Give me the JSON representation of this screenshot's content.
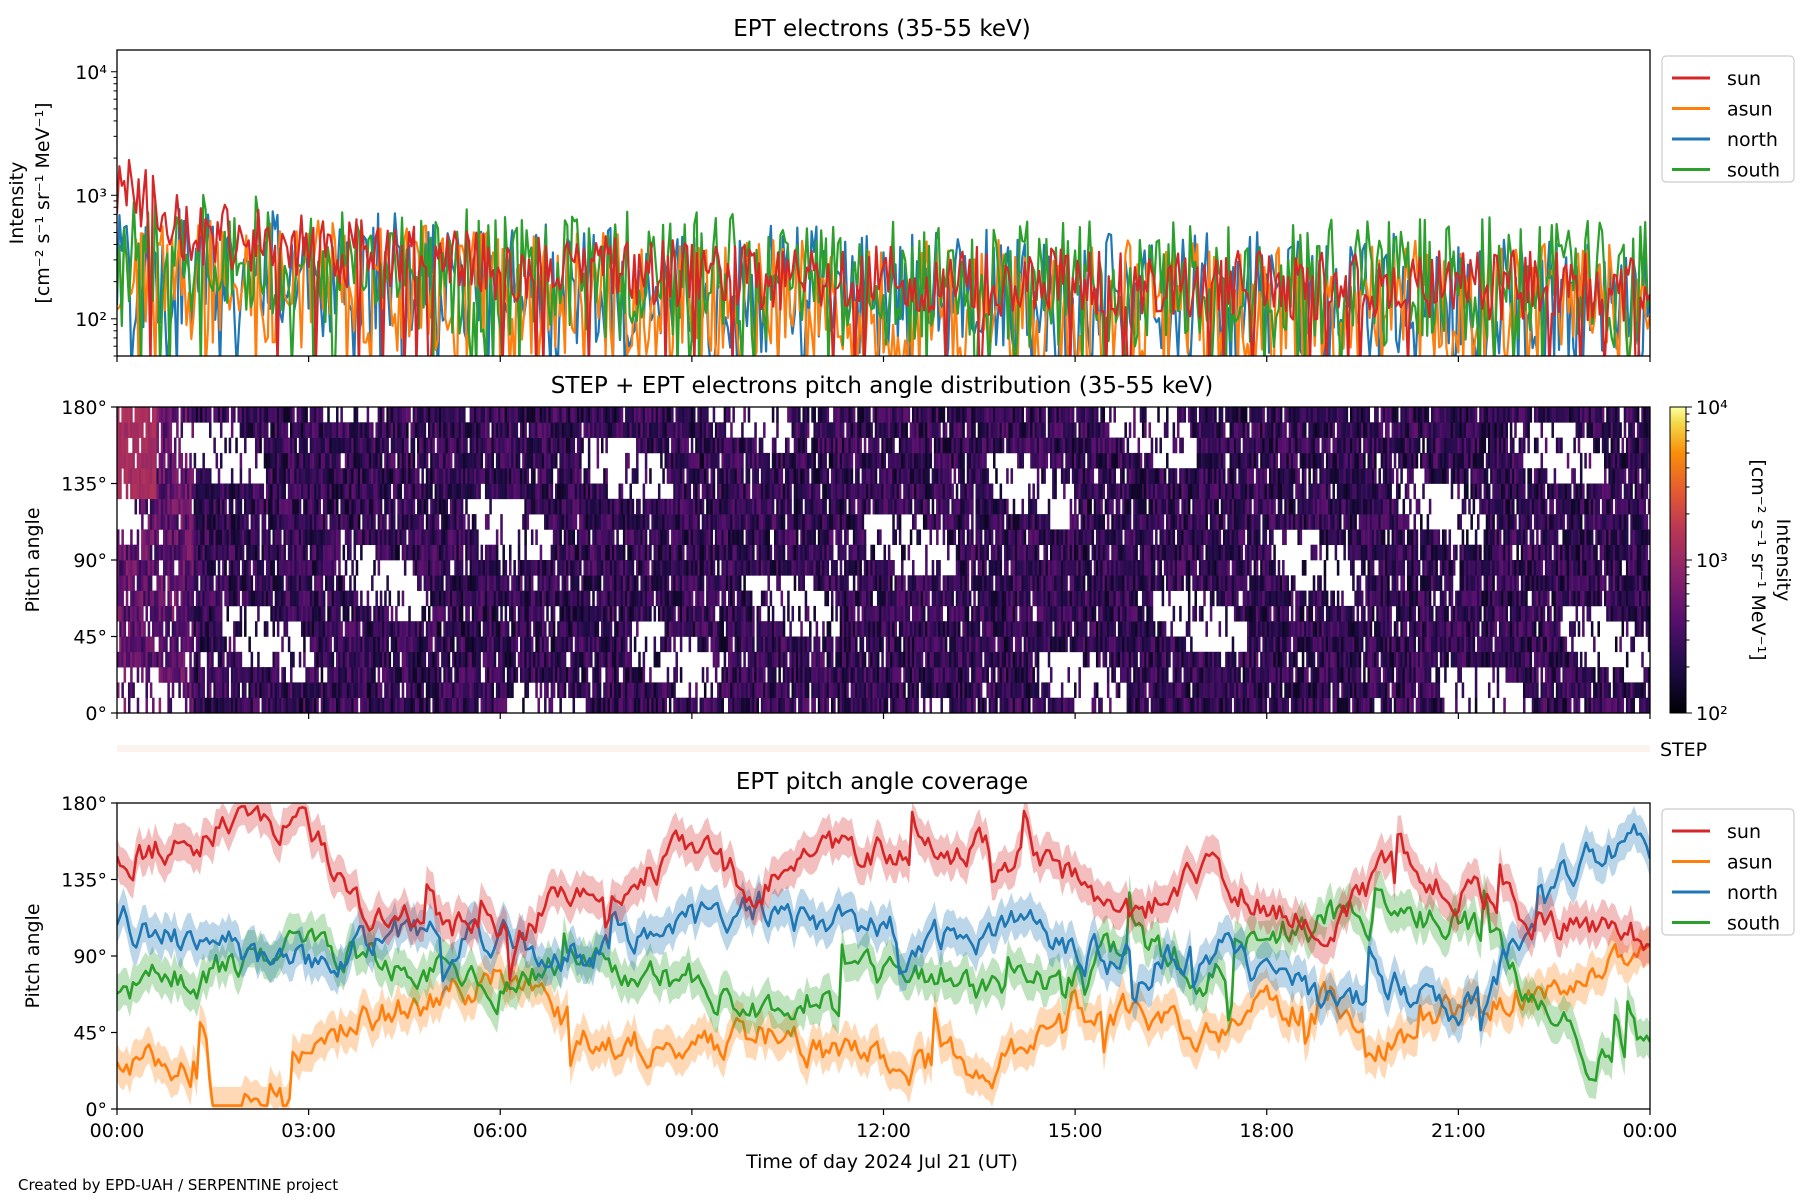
{
  "figure": {
    "credit": "Created by EPD-UAH / SERPENTINE project",
    "xlabel": "Time of day 2024 Jul 21 (UT)",
    "xtick_labels": [
      "00:00",
      "03:00",
      "06:00",
      "09:00",
      "12:00",
      "15:00",
      "18:00",
      "21:00",
      "00:00"
    ]
  },
  "chart_data": [
    {
      "type": "line",
      "title": "EPT electrons (35-55 keV)",
      "ylabel_line1": "Intensity",
      "ylabel_line2": "[cm⁻² s⁻¹ sr⁻¹ MeV⁻¹]",
      "yscale": "log",
      "ylim": [
        50,
        15000
      ],
      "ytick_values": [
        100,
        1000,
        10000
      ],
      "ytick_labels": [
        "10²",
        "10³",
        "10⁴"
      ],
      "xlim_hours": [
        0,
        24
      ],
      "legend_placement": "outside-right-top",
      "series": [
        {
          "name": "sun",
          "color": "#d62728",
          "x_hours": [
            0,
            0.3,
            0.6,
            1,
            2,
            3,
            4,
            6,
            8,
            10,
            12,
            14,
            16,
            18,
            20,
            22,
            24
          ],
          "values": [
            900,
            1100,
            800,
            550,
            450,
            380,
            320,
            270,
            240,
            220,
            210,
            200,
            195,
            190,
            185,
            190,
            180
          ]
        },
        {
          "name": "asun",
          "color": "#ff7f0e",
          "x_hours": [
            0,
            1,
            2,
            4,
            6,
            8,
            10,
            12,
            14,
            16,
            18,
            20,
            22,
            24
          ],
          "values": [
            250,
            230,
            260,
            230,
            200,
            190,
            180,
            175,
            170,
            165,
            160,
            165,
            160,
            150
          ]
        },
        {
          "name": "north",
          "color": "#1f77b4",
          "x_hours": [
            0,
            1,
            2,
            4,
            6,
            8,
            10,
            12,
            14,
            16,
            18,
            20,
            22,
            24
          ],
          "values": [
            280,
            300,
            320,
            280,
            250,
            230,
            220,
            210,
            200,
            200,
            195,
            200,
            190,
            180
          ]
        },
        {
          "name": "south",
          "color": "#2ca02c",
          "x_hours": [
            0,
            1,
            2,
            4,
            6,
            8,
            10,
            12,
            14,
            16,
            18,
            20,
            22,
            24
          ],
          "values": [
            350,
            420,
            380,
            330,
            300,
            290,
            270,
            250,
            250,
            245,
            240,
            250,
            260,
            240
          ]
        }
      ]
    },
    {
      "type": "heatmap",
      "title": "STEP + EPT electrons pitch angle distribution (35-55 keV)",
      "ylabel": "Pitch angle",
      "ylim": [
        0,
        180
      ],
      "ytick_labels": [
        "0°",
        "45°",
        "90°",
        "135°",
        "180°"
      ],
      "xlim_hours": [
        0,
        24
      ],
      "colorbar": {
        "scale": "log",
        "range": [
          100,
          10000
        ],
        "colormap": "inferno",
        "tick_labels": [
          "10²",
          "10³",
          "10⁴"
        ],
        "label_line1": "Intensity",
        "label_line2": "[cm⁻² s⁻¹ sr⁻¹ MeV⁻¹]"
      },
      "typical_intensity": 250,
      "early_peak_intensity": 1200
    },
    {
      "type": "heatmap",
      "title": "",
      "label": "STEP",
      "color": "#fdf3ee"
    },
    {
      "type": "line",
      "title": "EPT pitch angle coverage",
      "ylabel": "Pitch angle",
      "ylim": [
        0,
        180
      ],
      "ytick_labels": [
        "0°",
        "45°",
        "90°",
        "135°",
        "180°"
      ],
      "xlim_hours": [
        0,
        24
      ],
      "legend_placement": "outside-right-top",
      "series": [
        {
          "name": "sun",
          "color": "#d62728",
          "x_hours": [
            0,
            1,
            2,
            3,
            4,
            5,
            6,
            7,
            8,
            9,
            10,
            11,
            12,
            13,
            14,
            15,
            16,
            17,
            18,
            19,
            20,
            21,
            22,
            23,
            24
          ],
          "values": [
            150,
            160,
            170,
            165,
            120,
            110,
            100,
            125,
            140,
            150,
            130,
            145,
            150,
            155,
            150,
            135,
            115,
            140,
            120,
            110,
            140,
            130,
            115,
            105,
            95
          ]
        },
        {
          "name": "asun",
          "color": "#ff7f0e",
          "x_hours": [
            0,
            1,
            2,
            3,
            4,
            5,
            6,
            7,
            8,
            9,
            10,
            11,
            12,
            13,
            14,
            15,
            16,
            17,
            18,
            19,
            20,
            21,
            22,
            23,
            24
          ],
          "values": [
            30,
            20,
            10,
            30,
            55,
            65,
            75,
            50,
            40,
            30,
            45,
            35,
            30,
            25,
            30,
            45,
            60,
            40,
            55,
            65,
            40,
            60,
            70,
            80,
            85
          ]
        },
        {
          "name": "north",
          "color": "#1f77b4",
          "x_hours": [
            0,
            1,
            2,
            3,
            4,
            5,
            6,
            7,
            8,
            9,
            10,
            11,
            12,
            13,
            14,
            15,
            16,
            17,
            18,
            19,
            20,
            21,
            22,
            23,
            24
          ],
          "values": [
            110,
            100,
            90,
            85,
            95,
            105,
            100,
            90,
            100,
            110,
            120,
            110,
            105,
            100,
            105,
            95,
            85,
            100,
            80,
            60,
            70,
            60,
            100,
            150,
            155
          ]
        },
        {
          "name": "south",
          "color": "#2ca02c",
          "x_hours": [
            0,
            1,
            2,
            3,
            4,
            5,
            6,
            7,
            8,
            9,
            10,
            11,
            12,
            13,
            14,
            15,
            16,
            17,
            18,
            19,
            20,
            21,
            22,
            23,
            24
          ],
          "values": [
            70,
            75,
            85,
            95,
            90,
            80,
            75,
            85,
            80,
            75,
            60,
            70,
            75,
            80,
            70,
            85,
            95,
            80,
            100,
            115,
            110,
            115,
            75,
            35,
            30
          ]
        }
      ]
    }
  ]
}
